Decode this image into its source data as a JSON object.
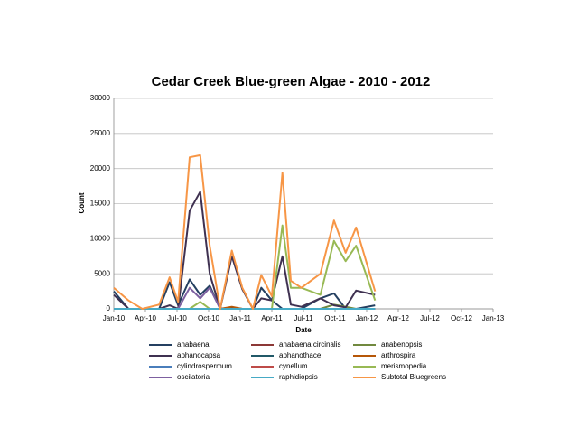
{
  "chart_data": {
    "type": "line",
    "title": "Cedar Creek Blue-green Algae - 2010 - 2012",
    "x_label": "Date",
    "y_label": "Count",
    "x": [
      0,
      1.4,
      2.7,
      4.3,
      5.3,
      6.1,
      7.2,
      8.2,
      9.1,
      10.1,
      11.2,
      12.2,
      13.2,
      14,
      15,
      16,
      16.8,
      17.8,
      19.6,
      20.9,
      22,
      23,
      24.8
    ],
    "xlim": [
      0,
      36
    ],
    "xticks": [
      {
        "value": 0,
        "label": "Jan-10"
      },
      {
        "value": 3,
        "label": "Apr-10"
      },
      {
        "value": 6,
        "label": "Jul-10"
      },
      {
        "value": 9,
        "label": "Oct-10"
      },
      {
        "value": 12,
        "label": "Jan-11"
      },
      {
        "value": 15,
        "label": "Apr-11"
      },
      {
        "value": 18,
        "label": "Jul-11"
      },
      {
        "value": 21,
        "label": "Oct-11"
      },
      {
        "value": 24,
        "label": "Jan-12"
      },
      {
        "value": 27,
        "label": "Apr-12"
      },
      {
        "value": 30,
        "label": "Jul-12"
      },
      {
        "value": 33,
        "label": "Oct-12"
      },
      {
        "value": 36,
        "label": "Jan-13"
      }
    ],
    "ylim": [
      0,
      30000
    ],
    "yticks": [
      0,
      5000,
      10000,
      15000,
      20000,
      25000,
      30000
    ],
    "grid": true,
    "series": [
      {
        "name": "anabaena",
        "color": "#254061",
        "values": [
          2500,
          0,
          0,
          0,
          3800,
          500,
          4200,
          2000,
          3300,
          0,
          200,
          0,
          0,
          3000,
          1200,
          0,
          0,
          0,
          1500,
          2200,
          0,
          0,
          500
        ]
      },
      {
        "name": "anabaena circinalis",
        "color": "#8c3836",
        "values": [
          0,
          0,
          0,
          0,
          0,
          0,
          0,
          0,
          0,
          0,
          0,
          0,
          0,
          0,
          0,
          0,
          0,
          0,
          0,
          0,
          0,
          0,
          0
        ]
      },
      {
        "name": "anabenopsis",
        "color": "#71893f",
        "values": [
          0,
          0,
          0,
          0,
          0,
          0,
          0,
          0,
          0,
          0,
          0,
          0,
          0,
          0,
          0,
          0,
          0,
          0,
          0,
          600,
          300,
          0,
          0
        ]
      },
      {
        "name": "aphanocapsa",
        "color": "#3f3151",
        "values": [
          2000,
          0,
          0,
          0,
          500,
          0,
          14000,
          16700,
          5000,
          0,
          7500,
          2800,
          0,
          1500,
          1200,
          7500,
          600,
          300,
          1500,
          500,
          200,
          2600,
          2000
        ]
      },
      {
        "name": "aphanothace",
        "color": "#215968",
        "values": [
          0,
          0,
          0,
          0,
          0,
          0,
          0,
          0,
          0,
          0,
          0,
          0,
          0,
          0,
          0,
          0,
          0,
          0,
          0,
          0,
          0,
          0,
          0
        ]
      },
      {
        "name": "arthrospira",
        "color": "#b65708",
        "values": [
          0,
          0,
          0,
          0,
          0,
          0,
          0,
          0,
          0,
          0,
          300,
          0,
          0,
          0,
          0,
          0,
          0,
          0,
          0,
          0,
          0,
          0,
          0
        ]
      },
      {
        "name": "cylindrospermum",
        "color": "#4a7ebb",
        "values": [
          0,
          0,
          0,
          0,
          0,
          0,
          0,
          0,
          0,
          0,
          0,
          0,
          0,
          0,
          0,
          0,
          0,
          0,
          0,
          0,
          0,
          0,
          0
        ]
      },
      {
        "name": "cynellum",
        "color": "#be4b48",
        "values": [
          0,
          0,
          0,
          0,
          0,
          0,
          0,
          0,
          0,
          0,
          0,
          0,
          0,
          0,
          0,
          0,
          0,
          0,
          0,
          0,
          0,
          0,
          0
        ]
      },
      {
        "name": "merismopedia",
        "color": "#98b954",
        "values": [
          0,
          0,
          0,
          0,
          0,
          0,
          0,
          1000,
          0,
          0,
          0,
          0,
          0,
          0,
          0,
          11900,
          3000,
          3000,
          2000,
          9700,
          6800,
          9000,
          1200
        ]
      },
      {
        "name": "oscilatoria",
        "color": "#7d60a0",
        "values": [
          0,
          0,
          0,
          0,
          0,
          0,
          3000,
          1500,
          3000,
          0,
          0,
          0,
          0,
          0,
          0,
          0,
          0,
          0,
          0,
          0,
          0,
          0,
          0
        ]
      },
      {
        "name": "raphidiopsis",
        "color": "#46aac5",
        "values": [
          0,
          0,
          0,
          0,
          0,
          0,
          0,
          0,
          0,
          0,
          0,
          0,
          0,
          0,
          0,
          0,
          0,
          0,
          0,
          0,
          0,
          0,
          0
        ]
      },
      {
        "name": "Subtotal Bluegreens",
        "color": "#f79646",
        "values": [
          3000,
          1200,
          0,
          600,
          4500,
          1000,
          21600,
          21900,
          9000,
          0,
          8300,
          3000,
          0,
          4800,
          1800,
          19400,
          4000,
          3000,
          5000,
          12600,
          8000,
          11600,
          2500
        ]
      }
    ]
  }
}
